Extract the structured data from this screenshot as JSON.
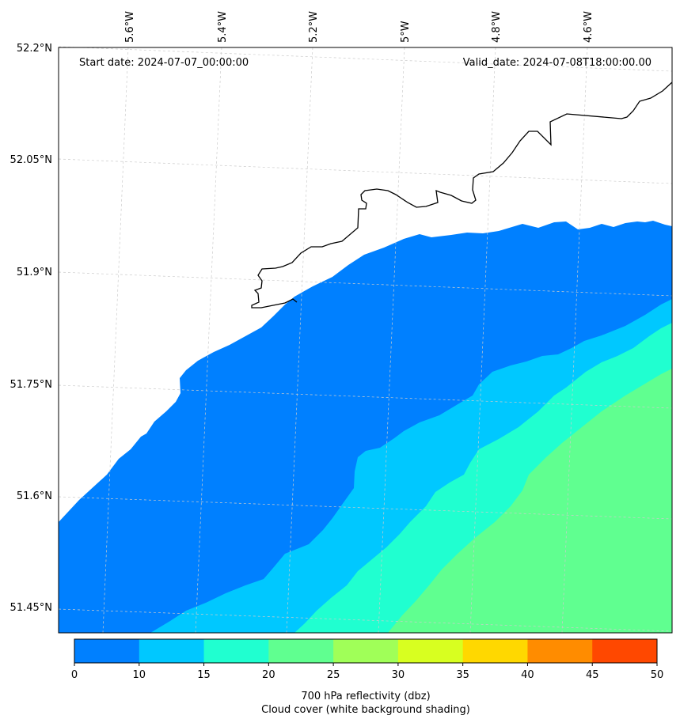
{
  "map": {
    "start_date": "Start date: 2024-07-07_00:00:00",
    "valid_date": "Valid_date: 2024-07-08T18:00:00.00",
    "lat_labels": [
      "52.2°N",
      "52.05°N",
      "51.9°N",
      "51.75°N",
      "51.6°N",
      "51.45°N"
    ],
    "lon_labels": [
      "5.6°W",
      "5.4°W",
      "5.2°W",
      "5°W",
      "4.8°W",
      "4.6°W"
    ],
    "band_colors": {
      "b0_10": "#0080ff",
      "b10_15": "#00c8ff",
      "b15_20": "#20ffd0",
      "b20_25": "#60ff90",
      "coast": "#000000",
      "grid": "#cccccc"
    }
  },
  "colorbar": {
    "ticks": [
      "0",
      "10",
      "15",
      "20",
      "25",
      "30",
      "35",
      "40",
      "45",
      "50"
    ],
    "colors": [
      "#0080ff",
      "#00c8ff",
      "#20ffd0",
      "#60ff90",
      "#a0ff58",
      "#d8ff20",
      "#ffd800",
      "#ff8c00",
      "#ff4800"
    ],
    "label_line1": "700 hPa reflectivity (dbz)",
    "label_line2": "Cloud cover (white background shading)"
  }
}
